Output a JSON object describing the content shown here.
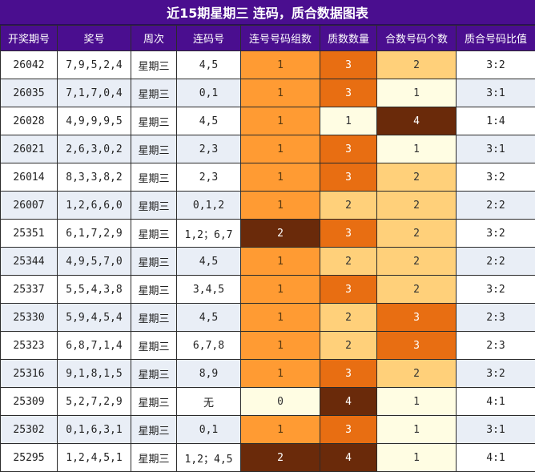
{
  "title": "近15期星期三 连码，质合数据图表",
  "headers": [
    "开奖期号",
    "奖号",
    "周次",
    "连码号",
    "连号号码组数",
    "质数数量",
    "合数号码个数",
    "质合号码比值"
  ],
  "colors": {
    "header_bg": "#4a0e8f",
    "row_alt": "#e9eef6",
    "heat": {
      "0": "#fffde3",
      "1": "#ff9b33",
      "2": "#6a2a0a",
      "q1": "#fffde3",
      "q2": "#ffd07a",
      "q3": "#e86e12",
      "q4": "#6a2a0a",
      "h1": "#fffde3",
      "h2": "#ffd07a",
      "h3": "#e86e12",
      "h4": "#6a2a0a"
    }
  },
  "rows": [
    {
      "period": "26042",
      "numbers": "7,9,5,2,4",
      "weekday": "星期三",
      "lian": "4,5",
      "groups": "1",
      "primes": "3",
      "composites": "2",
      "ratio": "3:2"
    },
    {
      "period": "26035",
      "numbers": "7,1,7,0,4",
      "weekday": "星期三",
      "lian": "0,1",
      "groups": "1",
      "primes": "3",
      "composites": "1",
      "ratio": "3:1"
    },
    {
      "period": "26028",
      "numbers": "4,9,9,9,5",
      "weekday": "星期三",
      "lian": "4,5",
      "groups": "1",
      "primes": "1",
      "composites": "4",
      "ratio": "1:4"
    },
    {
      "period": "26021",
      "numbers": "2,6,3,0,2",
      "weekday": "星期三",
      "lian": "2,3",
      "groups": "1",
      "primes": "3",
      "composites": "1",
      "ratio": "3:1"
    },
    {
      "period": "26014",
      "numbers": "8,3,3,8,2",
      "weekday": "星期三",
      "lian": "2,3",
      "groups": "1",
      "primes": "3",
      "composites": "2",
      "ratio": "3:2"
    },
    {
      "period": "26007",
      "numbers": "1,2,6,6,0",
      "weekday": "星期三",
      "lian": "0,1,2",
      "groups": "1",
      "primes": "2",
      "composites": "2",
      "ratio": "2:2"
    },
    {
      "period": "25351",
      "numbers": "6,1,7,2,9",
      "weekday": "星期三",
      "lian": "1,2；6,7",
      "groups": "2",
      "primes": "3",
      "composites": "2",
      "ratio": "3:2"
    },
    {
      "period": "25344",
      "numbers": "4,9,5,7,0",
      "weekday": "星期三",
      "lian": "4,5",
      "groups": "1",
      "primes": "2",
      "composites": "2",
      "ratio": "2:2"
    },
    {
      "period": "25337",
      "numbers": "5,5,4,3,8",
      "weekday": "星期三",
      "lian": "3,4,5",
      "groups": "1",
      "primes": "3",
      "composites": "2",
      "ratio": "3:2"
    },
    {
      "period": "25330",
      "numbers": "5,9,4,5,4",
      "weekday": "星期三",
      "lian": "4,5",
      "groups": "1",
      "primes": "2",
      "composites": "3",
      "ratio": "2:3"
    },
    {
      "period": "25323",
      "numbers": "6,8,7,1,4",
      "weekday": "星期三",
      "lian": "6,7,8",
      "groups": "1",
      "primes": "2",
      "composites": "3",
      "ratio": "2:3"
    },
    {
      "period": "25316",
      "numbers": "9,1,8,1,5",
      "weekday": "星期三",
      "lian": "8,9",
      "groups": "1",
      "primes": "3",
      "composites": "2",
      "ratio": "3:2"
    },
    {
      "period": "25309",
      "numbers": "5,2,7,2,9",
      "weekday": "星期三",
      "lian": "无",
      "groups": "0",
      "primes": "4",
      "composites": "1",
      "ratio": "4:1"
    },
    {
      "period": "25302",
      "numbers": "0,1,6,3,1",
      "weekday": "星期三",
      "lian": "0,1",
      "groups": "1",
      "primes": "3",
      "composites": "1",
      "ratio": "3:1"
    },
    {
      "period": "25295",
      "numbers": "1,2,4,5,1",
      "weekday": "星期三",
      "lian": "1,2；4,5",
      "groups": "2",
      "primes": "4",
      "composites": "1",
      "ratio": "4:1"
    }
  ]
}
